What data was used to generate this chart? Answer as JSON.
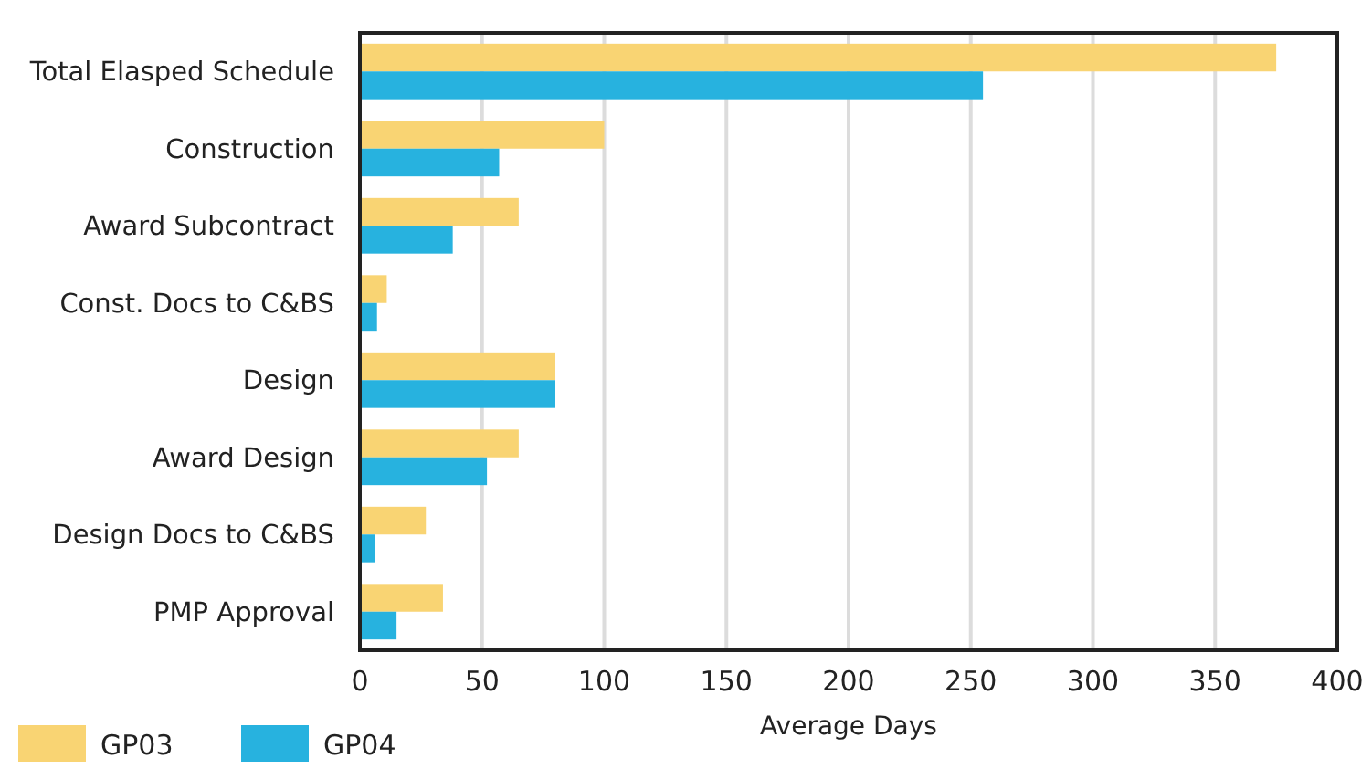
{
  "chart_data": {
    "type": "bar",
    "orientation": "horizontal",
    "xlabel": "Average Days",
    "categories": [
      "Total Elasped Schedule",
      "Construction",
      "Award Subcontract",
      "Const. Docs to C&BS",
      "Design",
      "Award Design",
      "Design Docs to C&BS",
      "PMP Approval"
    ],
    "series": [
      {
        "name": "GP03",
        "color": "#f9d473",
        "values": [
          375,
          100,
          65,
          11,
          80,
          65,
          27,
          34
        ]
      },
      {
        "name": "GP04",
        "color": "#27b2df",
        "values": [
          255,
          57,
          38,
          7,
          80,
          52,
          6,
          15
        ]
      }
    ],
    "xlim": [
      0,
      400
    ],
    "xticks": [
      0,
      50,
      100,
      150,
      200,
      250,
      300,
      350,
      400
    ],
    "grid": "x",
    "legend": "bottom left"
  }
}
